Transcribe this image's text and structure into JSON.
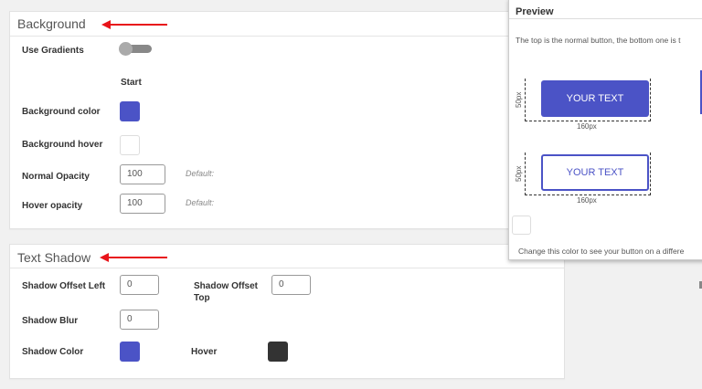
{
  "background": {
    "title": "Background",
    "use_gradients_label": "Use Gradients",
    "use_gradients_on": false,
    "start_label": "Start",
    "bg_color_label": "Background color",
    "bg_color": "#4b53c6",
    "bg_hover_label": "Background hover",
    "bg_hover": "#ffffff",
    "normal_opacity_label": "Normal Opacity",
    "normal_opacity": "100",
    "normal_default": "Default:",
    "hover_opacity_label": "Hover opacity",
    "hover_opacity": "100",
    "hover_default": "Default:"
  },
  "text_shadow": {
    "title": "Text Shadow",
    "offset_left_label": "Shadow Offset Left",
    "offset_left": "0",
    "offset_top_label": "Shadow Offset Top",
    "offset_top": "0",
    "blur_label": "Shadow Blur",
    "blur": "0",
    "color_label": "Shadow Color",
    "color": "#4b53c6",
    "hover_label": "Hover",
    "hover_color": "#333333"
  },
  "preview": {
    "title": "Preview",
    "description": "The top is the normal button, the bottom one is t",
    "button_text": "YOUR TEXT",
    "height_label": "50px",
    "width_label": "160px",
    "bg_color_note": "Change this color to see your button on a differe",
    "accent": "#4b53c6"
  }
}
